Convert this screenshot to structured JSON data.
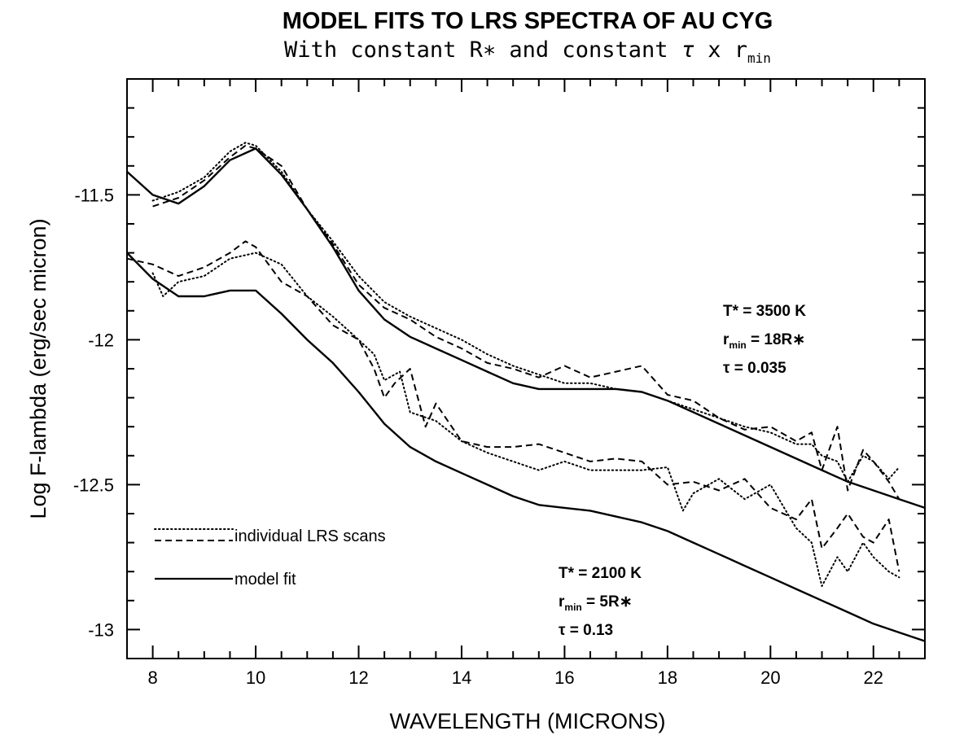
{
  "chart_data": {
    "type": "line",
    "title": "MODEL FITS TO LRS SPECTRA OF AU CYG",
    "subtitle": {
      "prefix": "With constant R",
      "rstar_symbol": "∗",
      "middle": " and constant ",
      "tau_symbol": "τ",
      "times": " x r",
      "min_sub": "min"
    },
    "xlabel": "WAVELENGTH (MICRONS)",
    "ylabel": "Log F-lambda (erg/sec micron)",
    "xlim": [
      7.5,
      23
    ],
    "ylim": [
      -13.1,
      -11.1
    ],
    "xticks": [
      8,
      10,
      12,
      14,
      16,
      18,
      20,
      22
    ],
    "xtick_labels": [
      "8",
      "10",
      "12",
      "14",
      "16",
      "18",
      "20",
      "22"
    ],
    "yticks": [
      -11.5,
      -12,
      -12.5,
      -13
    ],
    "ytick_labels": [
      "-11.5",
      "-12",
      "-12.5",
      "-13"
    ],
    "legend": {
      "position": "lower-left",
      "scans_label": "individual LRS scans",
      "model_label": "model fit"
    },
    "annotations": [
      {
        "name": "upper-model-params",
        "t_line": "T* = 3500 K",
        "r_prefix": "r",
        "r_sub": "min",
        "r_suffix": " = 18R∗",
        "tau_line": "τ = 0.035"
      },
      {
        "name": "lower-model-params",
        "t_line": "T* = 2100 K",
        "r_prefix": "r",
        "r_sub": "min",
        "r_suffix": " = 5R∗",
        "tau_line": "τ = 0.13"
      }
    ],
    "series": [
      {
        "style": "solid",
        "x": [
          7.5,
          8.0,
          8.5,
          9.0,
          9.5,
          10.0,
          10.5,
          11.0,
          11.5,
          12.0,
          12.5,
          13.0,
          13.5,
          14.0,
          14.5,
          15.0,
          15.5,
          16.0,
          16.5,
          17.0,
          17.5,
          18.0,
          18.5,
          19.0,
          19.5,
          20.0,
          20.5,
          21.0,
          21.5,
          22.0,
          22.5,
          23.0
        ],
        "y": [
          -11.42,
          -11.5,
          -11.53,
          -11.47,
          -11.38,
          -11.34,
          -11.43,
          -11.55,
          -11.68,
          -11.83,
          -11.93,
          -11.99,
          -12.03,
          -12.07,
          -12.11,
          -12.15,
          -12.17,
          -12.17,
          -12.17,
          -12.17,
          -12.18,
          -12.21,
          -12.25,
          -12.29,
          -12.33,
          -12.37,
          -12.41,
          -12.45,
          -12.49,
          -12.52,
          -12.55,
          -12.58
        ]
      },
      {
        "style": "dotted",
        "x": [
          8.0,
          8.5,
          9.0,
          9.5,
          9.8,
          10.0,
          10.5,
          11.0,
          11.5,
          12.0,
          12.5,
          13.0,
          13.5,
          14.0,
          14.5,
          15.0,
          15.5,
          16.0,
          16.5,
          17.0,
          17.5,
          18.0,
          18.5,
          19.0,
          19.5,
          20.0,
          20.5,
          20.8,
          21.0,
          21.3,
          21.5,
          21.8,
          22.0,
          22.3,
          22.5
        ],
        "y": [
          -11.52,
          -11.49,
          -11.44,
          -11.35,
          -11.32,
          -11.33,
          -11.42,
          -11.55,
          -11.66,
          -11.78,
          -11.87,
          -11.92,
          -11.96,
          -12.0,
          -12.05,
          -12.09,
          -12.12,
          -12.15,
          -12.15,
          -12.17,
          -12.18,
          -12.21,
          -12.24,
          -12.27,
          -12.3,
          -12.32,
          -12.36,
          -12.36,
          -12.4,
          -12.42,
          -12.49,
          -12.4,
          -12.42,
          -12.48,
          -12.44
        ]
      },
      {
        "style": "dashed",
        "x": [
          8.0,
          8.5,
          9.0,
          9.5,
          9.8,
          10.0,
          10.5,
          11.0,
          11.5,
          12.0,
          12.5,
          13.0,
          13.5,
          14.0,
          14.5,
          15.0,
          15.5,
          16.0,
          16.5,
          17.0,
          17.5,
          18.0,
          18.5,
          19.0,
          19.5,
          20.0,
          20.5,
          20.8,
          21.0,
          21.3,
          21.5,
          21.8,
          22.0,
          22.3,
          22.5
        ],
        "y": [
          -11.54,
          -11.51,
          -11.45,
          -11.37,
          -11.33,
          -11.34,
          -11.4,
          -11.55,
          -11.67,
          -11.81,
          -11.89,
          -11.93,
          -11.99,
          -12.03,
          -12.08,
          -12.1,
          -12.13,
          -12.09,
          -12.13,
          -12.11,
          -12.09,
          -12.19,
          -12.21,
          -12.27,
          -12.31,
          -12.3,
          -12.35,
          -12.32,
          -12.45,
          -12.3,
          -12.52,
          -12.38,
          -12.42,
          -12.49,
          -12.55
        ]
      },
      {
        "style": "solid",
        "x": [
          7.5,
          8.0,
          8.5,
          9.0,
          9.5,
          10.0,
          10.5,
          11.0,
          11.5,
          12.0,
          12.5,
          13.0,
          13.5,
          14.0,
          14.5,
          15.0,
          15.5,
          16.0,
          16.5,
          17.0,
          17.5,
          18.0,
          18.5,
          19.0,
          19.5,
          20.0,
          20.5,
          21.0,
          21.5,
          22.0,
          22.5,
          23.0
        ],
        "y": [
          -11.7,
          -11.79,
          -11.85,
          -11.85,
          -11.83,
          -11.83,
          -11.91,
          -12.0,
          -12.08,
          -12.18,
          -12.29,
          -12.37,
          -12.42,
          -12.46,
          -12.5,
          -12.54,
          -12.57,
          -12.58,
          -12.59,
          -12.61,
          -12.63,
          -12.66,
          -12.7,
          -12.74,
          -12.78,
          -12.82,
          -12.86,
          -12.9,
          -12.94,
          -12.98,
          -13.01,
          -13.04
        ]
      },
      {
        "style": "dotted",
        "x": [
          8.0,
          8.2,
          8.5,
          9.0,
          9.5,
          10.0,
          10.5,
          11.0,
          11.5,
          12.0,
          12.3,
          12.5,
          12.8,
          13.0,
          13.5,
          14.0,
          14.5,
          15.0,
          15.5,
          16.0,
          16.5,
          17.0,
          17.5,
          18.0,
          18.3,
          18.5,
          19.0,
          19.5,
          20.0,
          20.5,
          20.8,
          21.0,
          21.3,
          21.5,
          21.8,
          22.0,
          22.3,
          22.5
        ],
        "y": [
          -11.77,
          -11.85,
          -11.8,
          -11.78,
          -11.72,
          -11.7,
          -11.74,
          -11.85,
          -11.92,
          -12.0,
          -12.05,
          -12.14,
          -12.11,
          -12.25,
          -12.28,
          -12.35,
          -12.39,
          -12.42,
          -12.45,
          -12.42,
          -12.45,
          -12.45,
          -12.45,
          -12.44,
          -12.59,
          -12.53,
          -12.48,
          -12.55,
          -12.5,
          -12.65,
          -12.7,
          -12.85,
          -12.75,
          -12.8,
          -12.7,
          -12.75,
          -12.8,
          -12.82
        ]
      },
      {
        "style": "dashed",
        "x": [
          7.5,
          8.0,
          8.5,
          9.0,
          9.5,
          9.8,
          10.0,
          10.5,
          11.0,
          11.5,
          12.0,
          12.3,
          12.5,
          12.7,
          13.0,
          13.3,
          13.5,
          14.0,
          14.5,
          15.0,
          15.5,
          16.0,
          16.5,
          17.0,
          17.5,
          18.0,
          18.5,
          19.0,
          19.5,
          20.0,
          20.5,
          20.8,
          21.0,
          21.3,
          21.5,
          21.8,
          22.0,
          22.3,
          22.5
        ],
        "y": [
          -11.72,
          -11.74,
          -11.78,
          -11.75,
          -11.7,
          -11.66,
          -11.68,
          -11.8,
          -11.85,
          -11.95,
          -12.0,
          -12.1,
          -12.2,
          -12.15,
          -12.1,
          -12.3,
          -12.22,
          -12.35,
          -12.37,
          -12.37,
          -12.36,
          -12.39,
          -12.42,
          -12.41,
          -12.42,
          -12.5,
          -12.49,
          -12.52,
          -12.48,
          -12.58,
          -12.62,
          -12.55,
          -12.72,
          -12.65,
          -12.6,
          -12.68,
          -12.7,
          -12.62,
          -12.8
        ]
      }
    ]
  }
}
